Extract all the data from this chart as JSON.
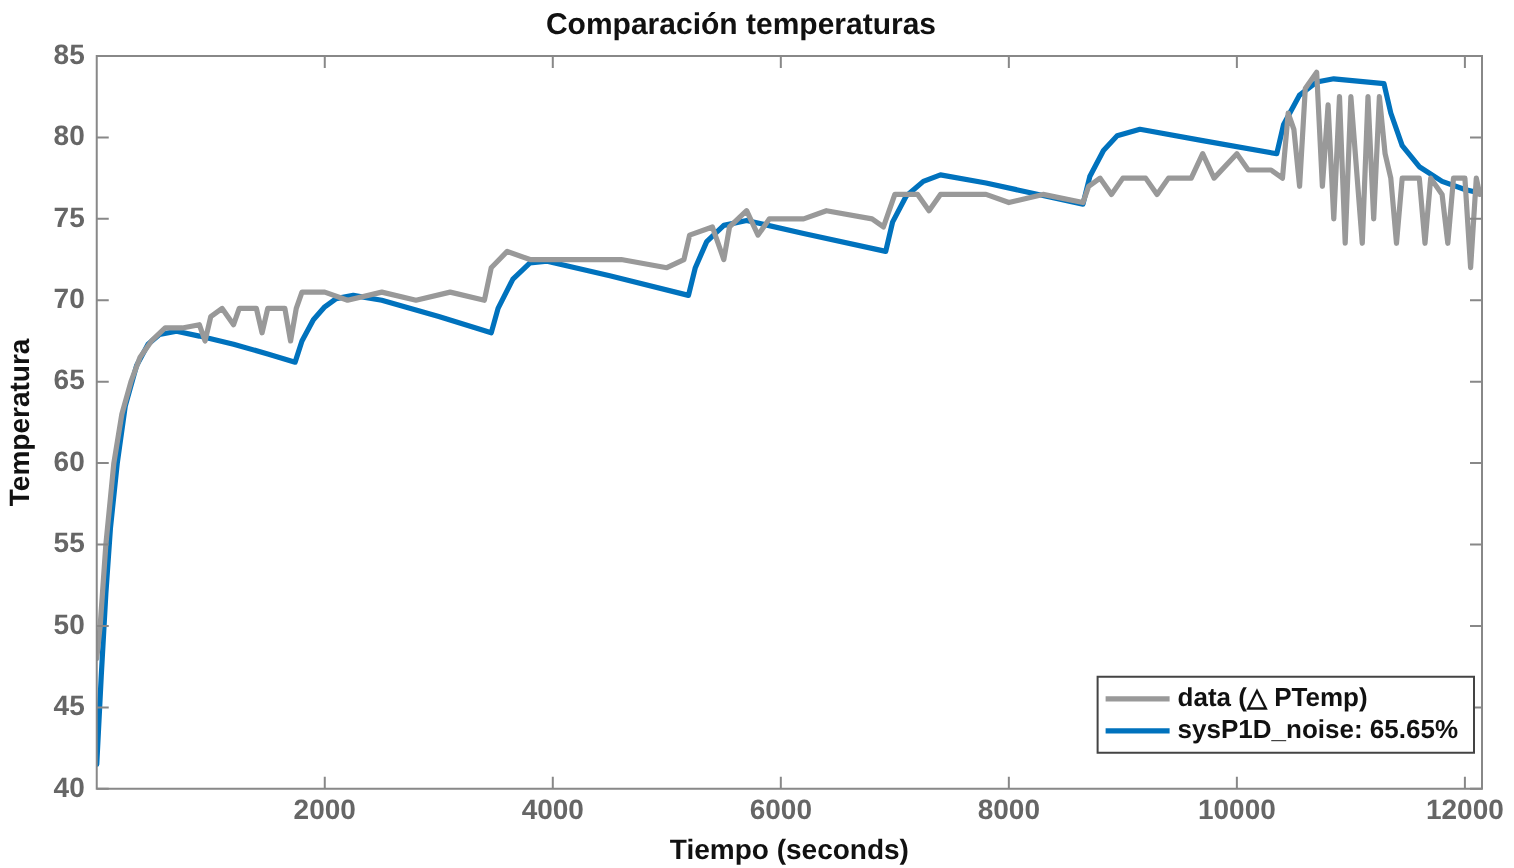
{
  "chart_data": {
    "type": "line",
    "title": "Comparación temperaturas",
    "xlabel": "Tiempo (seconds)",
    "ylabel": "Temperatura",
    "xlim": [
      0,
      12150
    ],
    "xticks": [
      2000,
      4000,
      6000,
      8000,
      10000,
      12000
    ],
    "ylim": [
      40,
      85
    ],
    "yticks": [
      40,
      45,
      50,
      55,
      60,
      65,
      70,
      75,
      80,
      85
    ],
    "grid": false,
    "legend": "bottom right",
    "marker": "none",
    "line_style": "solid",
    "series": [
      {
        "name": "data (△ PTemp)",
        "color": "#999999",
        "x": [
          0,
          30,
          80,
          150,
          220,
          300,
          380,
          480,
          600,
          750,
          900,
          950,
          1000,
          1100,
          1200,
          1250,
          1400,
          1450,
          1500,
          1650,
          1700,
          1750,
          1800,
          2000,
          2200,
          2500,
          2800,
          3100,
          3400,
          3460,
          3600,
          3800,
          4200,
          4600,
          5000,
          5150,
          5200,
          5400,
          5500,
          5550,
          5700,
          5800,
          5900,
          6200,
          6400,
          6800,
          6900,
          6950,
          7000,
          7200,
          7300,
          7400,
          7800,
          8000,
          8300,
          8650,
          8700,
          8800,
          8900,
          9000,
          9200,
          9300,
          9400,
          9600,
          9700,
          9800,
          10000,
          10100,
          10300,
          10400,
          10450,
          10500,
          10550,
          10600,
          10700,
          10750,
          10800,
          10850,
          10900,
          10950,
          11000,
          11100,
          11150,
          11200,
          11250,
          11300,
          11350,
          11400,
          11450,
          11600,
          11650,
          11700,
          11800,
          11850,
          11900,
          12000,
          12050,
          12100,
          12130
        ],
        "values": [
          48,
          50,
          55,
          60,
          63,
          65,
          66.5,
          67.5,
          68.3,
          68.3,
          68.5,
          67.5,
          69,
          69.5,
          68.5,
          69.5,
          69.5,
          68,
          69.5,
          69.5,
          67.5,
          69.5,
          70.5,
          70.5,
          70,
          70.5,
          70,
          70.5,
          70,
          72,
          73,
          72.5,
          72.5,
          72.5,
          72,
          72.5,
          74,
          74.5,
          72.5,
          74.5,
          75.5,
          74,
          75,
          75,
          75.5,
          75,
          74.5,
          75.5,
          76.5,
          76.5,
          75.5,
          76.5,
          76.5,
          76,
          76.5,
          76,
          77,
          77.5,
          76.5,
          77.5,
          77.5,
          76.5,
          77.5,
          77.5,
          79,
          77.5,
          79,
          78,
          78,
          77.5,
          81.5,
          80.5,
          77,
          83,
          84,
          77,
          82,
          75,
          82.5,
          73.5,
          82.5,
          73.5,
          82.5,
          75,
          82.5,
          79,
          77.5,
          73.5,
          77.5,
          77.5,
          73.5,
          77.5,
          76.5,
          73.5,
          77.5,
          77.5,
          72,
          77.5,
          76.5
        ]
      },
      {
        "name": "sysP1D_noise: 65.65%",
        "color": "#0072bd",
        "x": [
          0,
          40,
          80,
          120,
          180,
          250,
          350,
          450,
          550,
          700,
          900,
          1200,
          1500,
          1740,
          1800,
          1900,
          2000,
          2100,
          2250,
          2500,
          3000,
          3460,
          3520,
          3650,
          3800,
          3950,
          4500,
          5190,
          5250,
          5350,
          5500,
          5700,
          6200,
          6920,
          6980,
          7100,
          7250,
          7400,
          7800,
          8650,
          8710,
          8830,
          8950,
          9150,
          9700,
          10350,
          10410,
          10550,
          10700,
          10850,
          11290,
          11350,
          11450,
          11600,
          11800,
          12000,
          12120
        ],
        "values": [
          41.5,
          47,
          52,
          56,
          60,
          63.5,
          66,
          67.3,
          67.9,
          68.1,
          67.8,
          67.3,
          66.7,
          66.2,
          67.5,
          68.8,
          69.6,
          70.1,
          70.3,
          70,
          69,
          68,
          69.5,
          71.3,
          72.3,
          72.4,
          71.5,
          70.3,
          72,
          73.6,
          74.6,
          74.9,
          74.1,
          73,
          74.8,
          76.4,
          77.3,
          77.7,
          77.2,
          75.9,
          77.6,
          79.2,
          80.1,
          80.5,
          79.8,
          79,
          80.8,
          82.6,
          83.4,
          83.6,
          83.3,
          81.5,
          79.5,
          78.2,
          77.3,
          76.8,
          76.6
        ]
      }
    ]
  }
}
